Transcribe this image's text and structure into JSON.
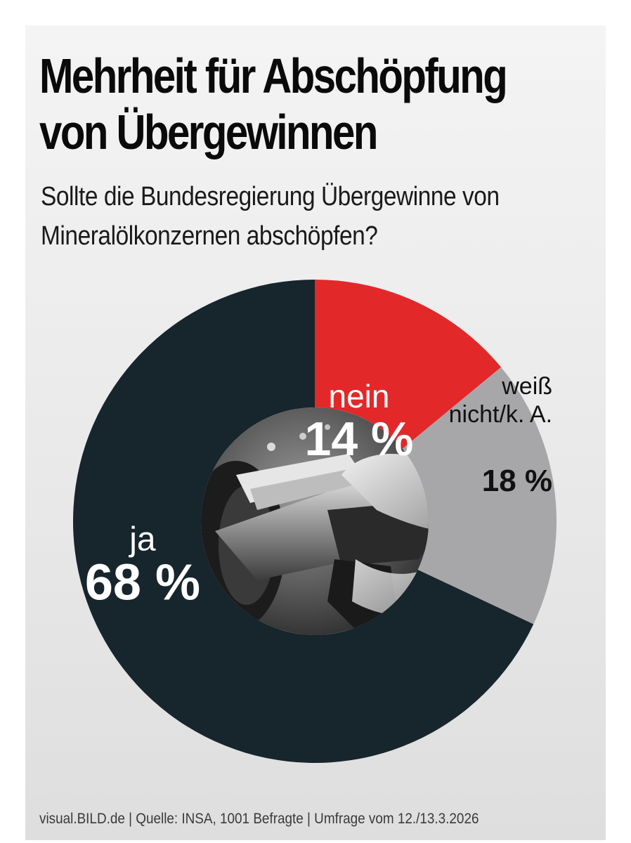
{
  "header": {
    "title_line1": "Mehrheit für Abschöpfung",
    "title_line2": "von Übergewinnen",
    "subtitle_line1": "Sollte die Bundesregierung Übergewinne von",
    "subtitle_line2": "Mineralölkonzernen abschöpfen?"
  },
  "chart_data": {
    "type": "pie",
    "style": "donut",
    "title": "Mehrheit für Abschöpfung von Übergewinnen",
    "subtitle": "Sollte die Bundesregierung Übergewinne von Mineralölkonzernen abschöpfen?",
    "slices": [
      {
        "name": "nein",
        "value": 14,
        "value_label": "14 %",
        "color": "#e3282a",
        "label_color": "#ffffff"
      },
      {
        "name_lines": [
          "weiß",
          "nicht/k. A."
        ],
        "name": "weiß nicht/k. A.",
        "value": 18,
        "value_label": "18 %",
        "color": "#a7a7aa",
        "label_color": "#111111"
      },
      {
        "name": "ja",
        "value": 68,
        "value_label": "68 %",
        "color": "#17252d",
        "label_color": "#ffffff"
      }
    ],
    "center_image": "fuel-pump-nozzle-photo"
  },
  "footer": {
    "source": "visual.BILD.de | Quelle: INSA, 1001 Befragte | Umfrage vom 12./13.3.2026"
  }
}
